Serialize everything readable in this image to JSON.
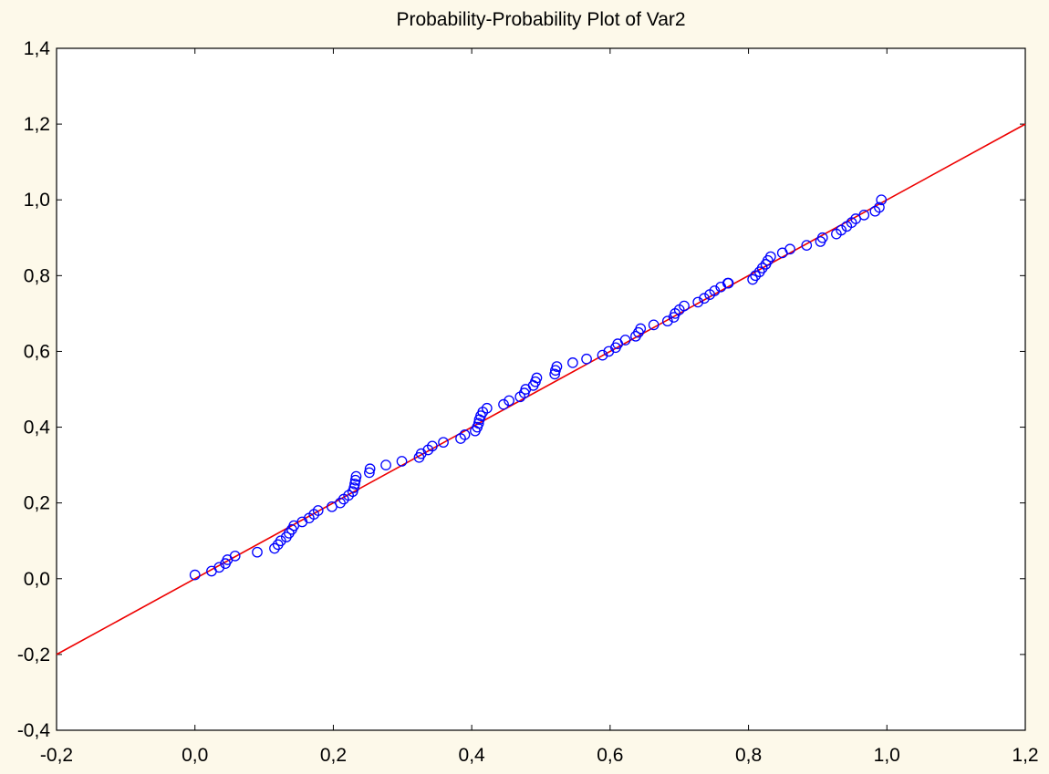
{
  "chart_data": {
    "type": "scatter",
    "title": "Probability-Probability Plot of Var2",
    "xlabel": "",
    "ylabel": "",
    "xlim": [
      -0.2,
      1.2
    ],
    "ylim": [
      -0.4,
      1.4
    ],
    "x_ticks": [
      -0.2,
      0.0,
      0.2,
      0.4,
      0.6,
      0.8,
      1.0,
      1.2
    ],
    "y_ticks": [
      -0.4,
      -0.2,
      0.0,
      0.2,
      0.4,
      0.6,
      0.8,
      1.0,
      1.2,
      1.4
    ],
    "x_tick_labels": [
      "-0,2",
      "0,0",
      "0,2",
      "0,4",
      "0,6",
      "0,8",
      "1,0",
      "1,2"
    ],
    "y_tick_labels": [
      "-0,4",
      "-0,2",
      "0,0",
      "0,2",
      "0,4",
      "0,6",
      "0,8",
      "1,0",
      "1,2",
      "1,4"
    ],
    "grid": false,
    "legend": "none",
    "colors": {
      "points": "#0000ff",
      "reference_line": "#ee0000",
      "background": "#fdf9ea",
      "plot_area": "#ffffff"
    },
    "reference_line": {
      "from": [
        -0.2,
        -0.2
      ],
      "to": [
        1.2,
        1.2
      ]
    },
    "points": {
      "x": [
        0.0,
        0.024,
        0.035,
        0.044,
        0.047,
        0.058,
        0.09,
        0.115,
        0.12,
        0.124,
        0.132,
        0.136,
        0.14,
        0.143,
        0.155,
        0.165,
        0.172,
        0.178,
        0.198,
        0.21,
        0.215,
        0.222,
        0.228,
        0.23,
        0.231,
        0.232,
        0.233,
        0.252,
        0.253,
        0.276,
        0.299,
        0.324,
        0.327,
        0.337,
        0.343,
        0.359,
        0.384,
        0.39,
        0.405,
        0.408,
        0.41,
        0.411,
        0.413,
        0.416,
        0.422,
        0.446,
        0.454,
        0.47,
        0.476,
        0.478,
        0.489,
        0.492,
        0.494,
        0.52,
        0.521,
        0.523,
        0.546,
        0.566,
        0.589,
        0.598,
        0.608,
        0.611,
        0.622,
        0.637,
        0.641,
        0.644,
        0.663,
        0.683,
        0.692,
        0.694,
        0.7,
        0.707,
        0.727,
        0.736,
        0.744,
        0.751,
        0.76,
        0.77,
        0.771,
        0.806,
        0.81,
        0.816,
        0.82,
        0.825,
        0.828,
        0.832,
        0.849,
        0.86,
        0.884,
        0.904,
        0.907,
        0.927,
        0.934,
        0.942,
        0.949,
        0.955,
        0.967,
        0.983,
        0.989,
        0.992
      ],
      "y": [
        0.01,
        0.02,
        0.03,
        0.04,
        0.05,
        0.06,
        0.07,
        0.08,
        0.09,
        0.1,
        0.11,
        0.12,
        0.13,
        0.14,
        0.15,
        0.16,
        0.17,
        0.18,
        0.19,
        0.2,
        0.21,
        0.22,
        0.23,
        0.24,
        0.25,
        0.26,
        0.27,
        0.28,
        0.29,
        0.3,
        0.31,
        0.32,
        0.33,
        0.34,
        0.35,
        0.36,
        0.37,
        0.38,
        0.39,
        0.4,
        0.41,
        0.42,
        0.43,
        0.44,
        0.45,
        0.46,
        0.47,
        0.48,
        0.49,
        0.5,
        0.51,
        0.52,
        0.53,
        0.54,
        0.55,
        0.56,
        0.57,
        0.58,
        0.59,
        0.6,
        0.61,
        0.62,
        0.63,
        0.64,
        0.65,
        0.66,
        0.67,
        0.68,
        0.69,
        0.7,
        0.71,
        0.72,
        0.73,
        0.74,
        0.75,
        0.76,
        0.77,
        0.78,
        0.78,
        0.79,
        0.8,
        0.81,
        0.82,
        0.83,
        0.84,
        0.85,
        0.86,
        0.87,
        0.88,
        0.89,
        0.9,
        0.91,
        0.92,
        0.93,
        0.94,
        0.95,
        0.96,
        0.97,
        0.98,
        1.0
      ]
    }
  }
}
